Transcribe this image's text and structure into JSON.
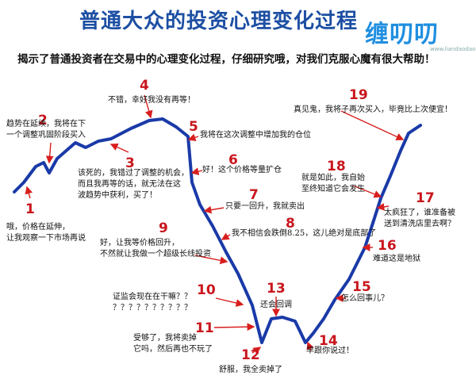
{
  "title": "普通大众的投资心理变化过程",
  "subtitle": "揭示了普通投资者在交易中的心理变化过程，仔细研究哦，对我们克服心魔有很大帮助！",
  "watermark": {
    "text": "缠叨叨",
    "url": "www.liandaodao.com"
  },
  "colors": {
    "title": "#1d4fa3",
    "line": "#1a3aa8",
    "number": "#c9161d",
    "arrow": "#d81e1e"
  },
  "stages": [
    {
      "number": "1",
      "lines": [
        "哦，价格在延伸，",
        "让我观察一下市场再说"
      ]
    },
    {
      "number": "2",
      "lines": [
        "趋势在延续，我将在下",
        "一个调整巩固阶段买入"
      ]
    },
    {
      "number": "3",
      "lines": [
        "该死的，我错过了调整的机会，",
        "而且我再等的话，就无法在这",
        "波趋势中获利，买了！"
      ]
    },
    {
      "number": "4",
      "lines": [
        "不错，幸好我没有再等！"
      ]
    },
    {
      "number": "5",
      "lines": [
        "我将在这次调整中增加我的仓位"
      ]
    },
    {
      "number": "6",
      "lines": [
        "好！这个价格等量扩仓"
      ]
    },
    {
      "number": "7",
      "lines": [
        "只要一回升，我就卖出"
      ]
    },
    {
      "number": "8",
      "lines": [
        "我不相信会跌倒8.25，这儿绝对是底部了"
      ]
    },
    {
      "number": "9",
      "lines": [
        "好，让我等价格回升，",
        "不然就让我做一个超级长线投资"
      ]
    },
    {
      "number": "10",
      "lines": [
        "证监会现在在干嘛？？",
        "？？？？？？？？？？"
      ]
    },
    {
      "number": "11",
      "lines": [
        "受够了，我将卖掉",
        "它吗，然后再也不玩了"
      ]
    },
    {
      "number": "12",
      "lines": [
        "舒服，我全卖掉了"
      ]
    },
    {
      "number": "13",
      "lines": [
        "还会回调"
      ]
    },
    {
      "number": "14",
      "lines": [
        "早跟你说过！"
      ]
    },
    {
      "number": "15",
      "lines": [
        "怎么回事儿？"
      ]
    },
    {
      "number": "16",
      "lines": [
        "难道这是地狱"
      ]
    },
    {
      "number": "17",
      "lines": [
        "太疯狂了，谁准备被",
        "送到清洗店里去啊？"
      ]
    },
    {
      "number": "18",
      "lines": [
        "就是如此，我自始",
        "至终知道它会发生"
      ]
    },
    {
      "number": "19",
      "lines": [
        "真见鬼，我将子再次买入，毕竟比上次便宜！"
      ]
    }
  ]
}
